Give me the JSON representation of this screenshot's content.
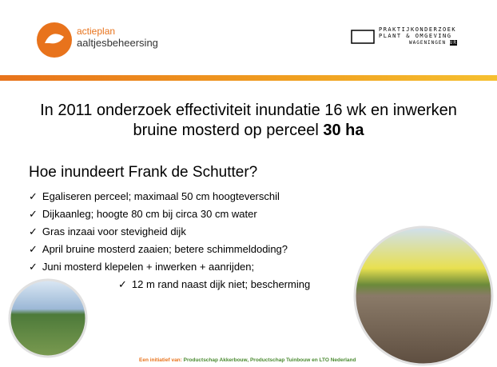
{
  "header": {
    "logo_line1": "actieplan",
    "logo_line2": "aaltjesbeheersing",
    "partner_line1": "PRAKTIJKONDERZOEK",
    "partner_line2": "PLANT & OMGEVING",
    "partner_line3": "WAGENINGEN",
    "partner_ur": "UR"
  },
  "title": {
    "text": "In 2011 onderzoek effectiviteit inundatie 16 wk en inwerken bruine mosterd op perceel",
    "bold": "30 ha"
  },
  "subtitle": "Hoe inundeert Frank de Schutter?",
  "bullet_mark": "✓",
  "bullets": [
    "Egaliseren perceel; maximaal 50 cm hoogteverschil",
    "Dijkaanleg; hoogte 80 cm bij circa 30 cm water",
    "Gras inzaai voor stevigheid dijk",
    "April bruine mosterd zaaien; betere schimmeldoding?",
    "Juni mosterd klepelen + inwerken + aanrijden;",
    "12 m rand naast dijk niet; bescherming"
  ],
  "footer": {
    "label": "Een initiatief van:",
    "text": "Productschap Akkerbouw, Productschap Tuinbouw en LTO Nederland"
  }
}
